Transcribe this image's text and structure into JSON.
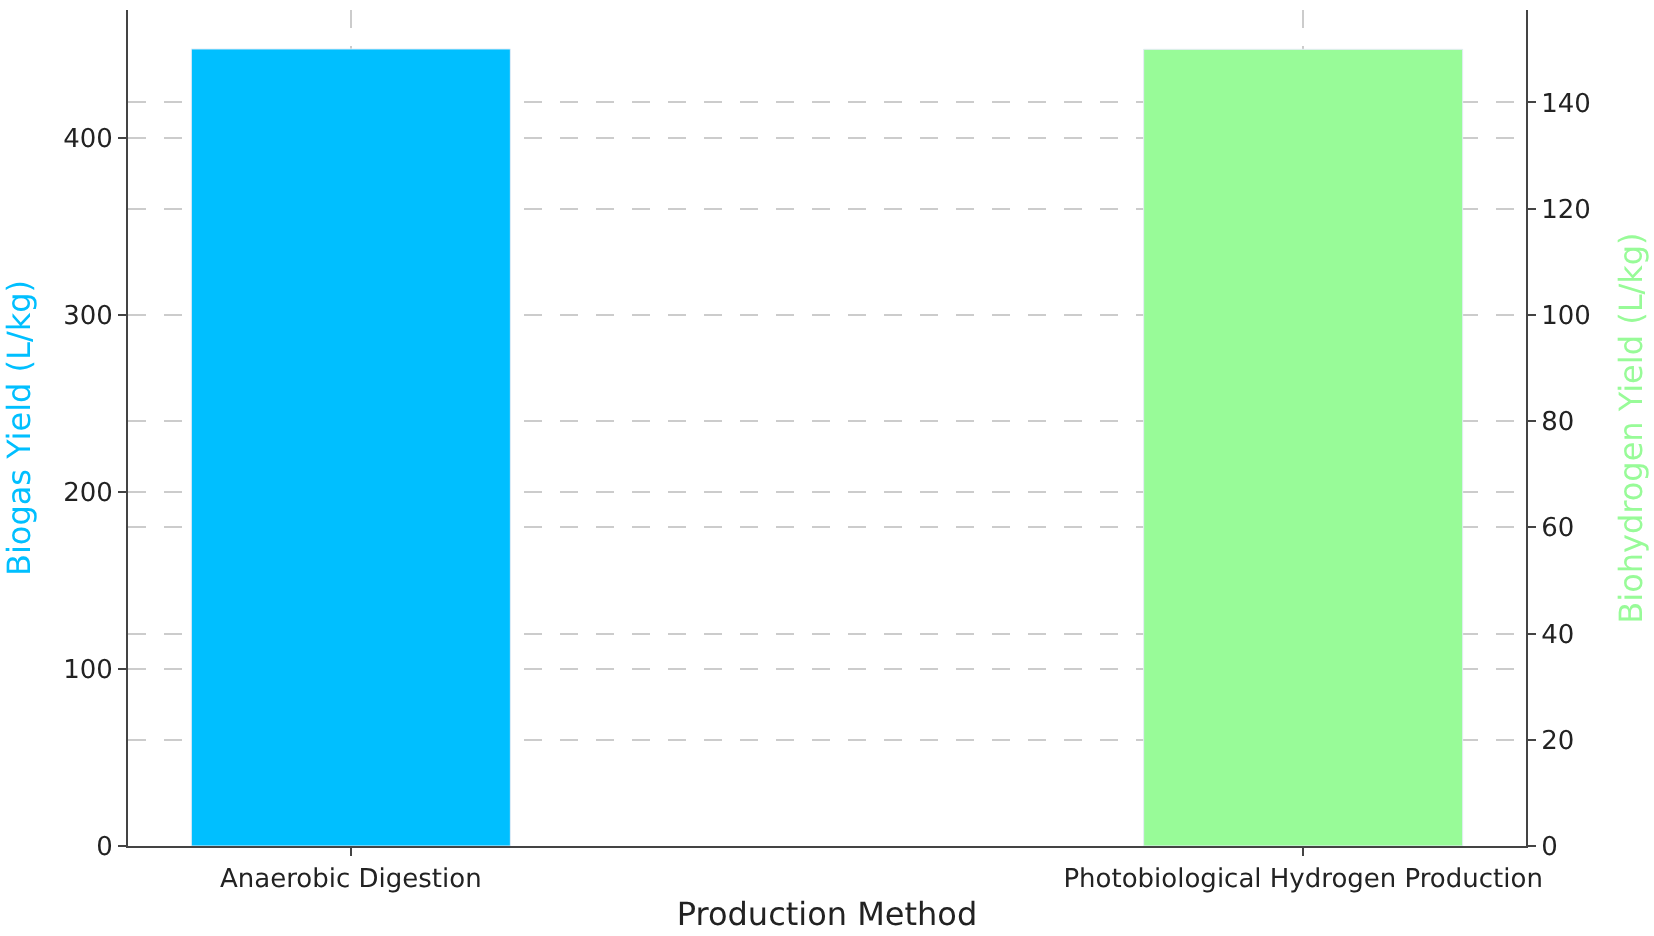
{
  "chart_data": {
    "type": "bar",
    "categories": [
      "Anaerobic Digestion",
      "Photobiological Hydrogen Production"
    ],
    "xlabel": "Production Method",
    "ylabel": "Biogas Yield (L/kg)",
    "y2label": "Biohydrogen Yield (L/kg)",
    "series": [
      {
        "color": "#00bfff",
        "values": [
          450,
          null
        ]
      },
      {
        "color": "#98fb98",
        "values": [
          null,
          150
        ],
        "axis": "y2"
      }
    ],
    "ylim": [
      0,
      472
    ],
    "yticks": [
      0,
      100,
      200,
      300,
      400
    ],
    "y2lim": [
      0,
      157.4
    ],
    "y2ticks": [
      0,
      20,
      40,
      60,
      80,
      100,
      120,
      140
    ],
    "grid": true
  }
}
